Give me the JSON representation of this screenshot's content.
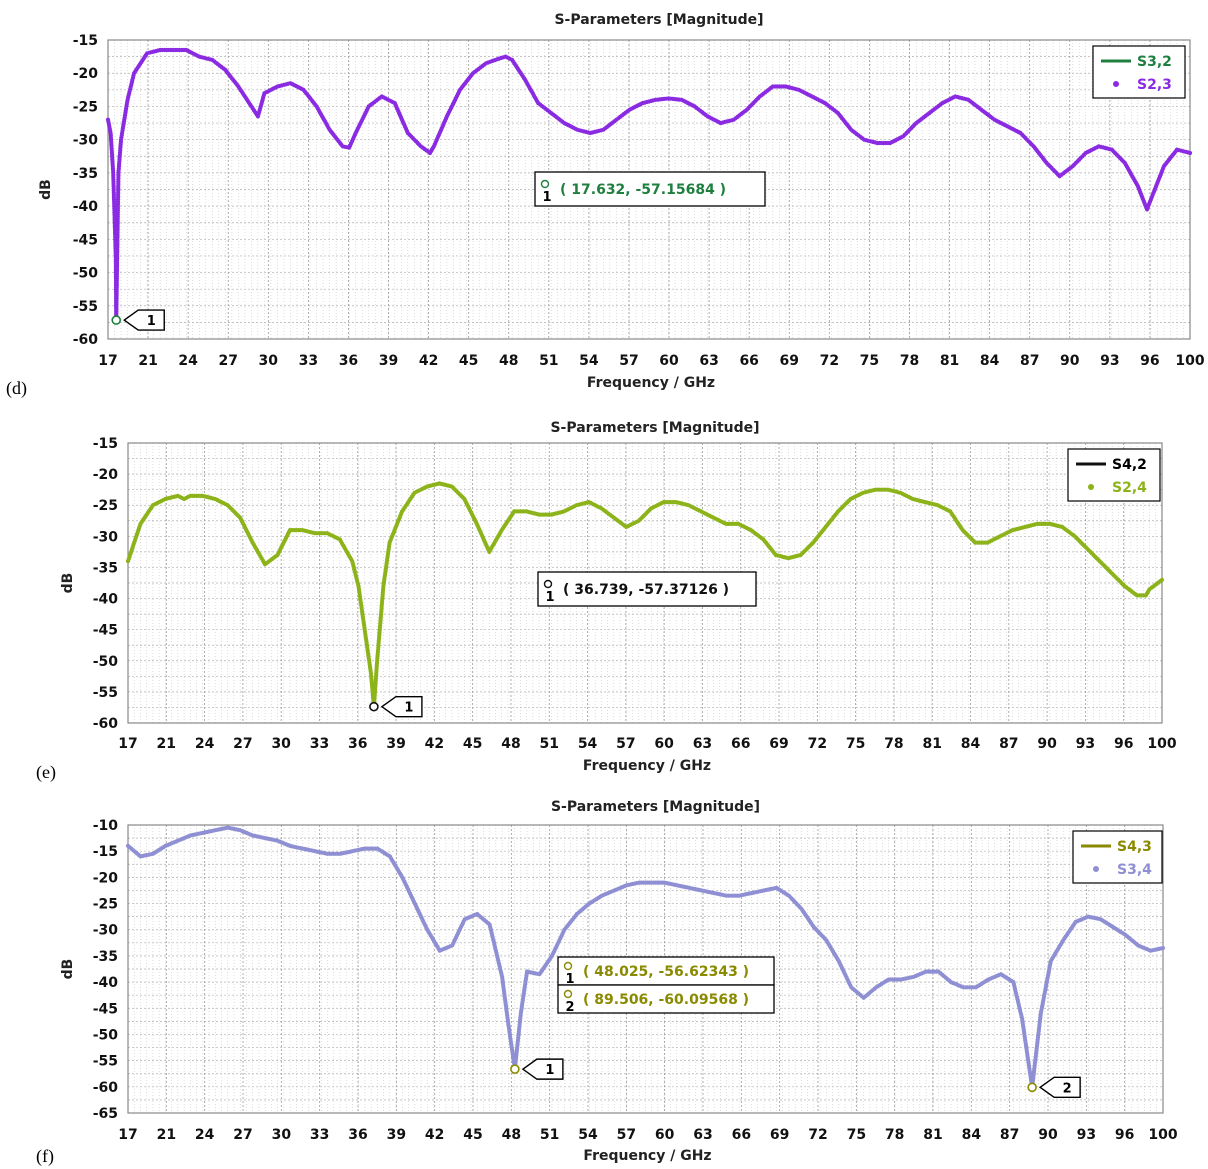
{
  "chart_data": [
    {
      "panel": "(d)",
      "type": "line",
      "title": "S-Parameters [Magnitude]",
      "xlabel": "Frequency / GHz",
      "ylabel": "dB",
      "xlim": [
        17,
        100
      ],
      "ylim": [
        -60,
        -15
      ],
      "xticks": [
        17,
        21,
        24,
        27,
        30,
        33,
        36,
        39,
        42,
        45,
        48,
        51,
        54,
        57,
        60,
        63,
        66,
        69,
        72,
        75,
        78,
        81,
        84,
        87,
        90,
        93,
        96,
        100
      ],
      "yticks": [
        -15,
        -20,
        -25,
        -30,
        -35,
        -40,
        -45,
        -50,
        -55,
        -60
      ],
      "grid": true,
      "legend_position": "top-right",
      "series": [
        {
          "name": "S3,2",
          "style": "line",
          "color": "#1f7f3f",
          "x": [
            17,
            17.2,
            17.4,
            17.6,
            17.632,
            17.8,
            18,
            18.5,
            19,
            20,
            21,
            22,
            23,
            24,
            25,
            26,
            27,
            28,
            28.5,
            29,
            30,
            31,
            32,
            33,
            34,
            35,
            35.5,
            36,
            37,
            38,
            39,
            40,
            41,
            41.7,
            42,
            43,
            44,
            45,
            46,
            47,
            47.5,
            48,
            49,
            50,
            51,
            52,
            53,
            54,
            55,
            56,
            57,
            58,
            59,
            60,
            61,
            62,
            63,
            64,
            65,
            66,
            67,
            68,
            69,
            70,
            71,
            72,
            73,
            74,
            75,
            76,
            77,
            78,
            79,
            80,
            81,
            82,
            83,
            84,
            85,
            86,
            87,
            88,
            89,
            90,
            91,
            92,
            93,
            94,
            95,
            96,
            96.7,
            97,
            98,
            99,
            100
          ],
          "y": [
            -27,
            -29,
            -35,
            -48,
            -57.15684,
            -35,
            -30,
            -24,
            -20,
            -17,
            -16.5,
            -16.5,
            -16.5,
            -17.5,
            -18,
            -19.5,
            -22,
            -25,
            -26.5,
            -23,
            -22,
            -21.5,
            -22.5,
            -25,
            -28.5,
            -31,
            -31.2,
            -29,
            -25,
            -23.5,
            -24.5,
            -29,
            -31,
            -32,
            -31,
            -26.5,
            -22.5,
            -20,
            -18.5,
            -17.8,
            -17.5,
            -18,
            -21,
            -24.5,
            -26,
            -27.5,
            -28.5,
            -29,
            -28.5,
            -27,
            -25.5,
            -24.5,
            -24,
            -23.8,
            -24,
            -25,
            -26.5,
            -27.5,
            -27,
            -25.5,
            -23.5,
            -22,
            -22,
            -22.5,
            -23.5,
            -24.5,
            -26,
            -28.5,
            -30,
            -30.5,
            -30.5,
            -29.5,
            -27.5,
            -26,
            -24.5,
            -23.5,
            -24,
            -25.5,
            -27,
            -28,
            -29,
            -31,
            -33.5,
            -35.5,
            -34,
            -32,
            -31,
            -31.5,
            -33.5,
            -37,
            -40.5,
            -39,
            -34,
            -31.5,
            -32
          ]
        },
        {
          "name": "S2,3",
          "style": "markers",
          "color": "#8a2be2",
          "same_as": "S3,2"
        }
      ],
      "markers": [
        {
          "id": "1",
          "x": 17.632,
          "y": -57.15684
        }
      ],
      "annotations": [
        {
          "marker": "1",
          "text": "( 17.632, -57.15684 )"
        }
      ]
    },
    {
      "panel": "(e)",
      "type": "line",
      "title": "S-Parameters [Magnitude]",
      "xlabel": "Frequency / GHz",
      "ylabel": "dB",
      "xlim": [
        17,
        100
      ],
      "ylim": [
        -60,
        -15
      ],
      "xticks": [
        17,
        21,
        24,
        27,
        30,
        33,
        36,
        39,
        42,
        45,
        48,
        51,
        54,
        57,
        60,
        63,
        66,
        69,
        72,
        75,
        78,
        81,
        84,
        87,
        90,
        93,
        96,
        100
      ],
      "yticks": [
        -15,
        -20,
        -25,
        -30,
        -35,
        -40,
        -45,
        -50,
        -55,
        -60
      ],
      "grid": true,
      "legend_position": "top-right",
      "series": [
        {
          "name": "S4,2",
          "style": "line",
          "color": "#111111",
          "x": [
            17,
            18,
            19,
            20,
            21,
            21.5,
            22,
            23,
            24,
            25,
            26,
            27,
            28,
            29,
            30,
            31,
            32,
            33,
            34,
            35,
            35.5,
            36,
            36.5,
            36.739,
            37,
            37.5,
            38,
            39,
            40,
            41,
            42,
            43,
            44,
            45,
            46,
            47,
            48,
            49,
            50,
            51,
            52,
            53,
            54,
            55,
            56,
            57,
            58,
            59,
            60,
            61,
            62,
            63,
            64,
            65,
            66,
            67,
            68,
            69,
            70,
            71,
            72,
            73,
            74,
            75,
            76,
            77,
            78,
            79,
            80,
            81,
            82,
            83,
            84,
            85,
            86,
            87,
            88,
            89,
            90,
            91,
            92,
            93,
            94,
            95,
            96,
            97,
            98,
            98.7,
            99,
            100
          ],
          "y": [
            -34,
            -28,
            -25,
            -24,
            -23.5,
            -24,
            -23.5,
            -23.5,
            -24,
            -25,
            -27,
            -31,
            -34.5,
            -33,
            -29,
            -29,
            -29.5,
            -29.5,
            -30.5,
            -34,
            -38,
            -45,
            -52,
            -57.37126,
            -50,
            -38,
            -31,
            -26,
            -23,
            -22,
            -21.5,
            -22,
            -24,
            -28,
            -32.5,
            -29,
            -26,
            -26,
            -26.5,
            -26.5,
            -26,
            -25,
            -24.5,
            -25.5,
            -27,
            -28.5,
            -27.5,
            -25.5,
            -24.5,
            -24.5,
            -25,
            -26,
            -27,
            -28,
            -28,
            -29,
            -30.5,
            -33,
            -33.5,
            -33,
            -31,
            -28.5,
            -26,
            -24,
            -23,
            -22.5,
            -22.5,
            -23,
            -24,
            -24.5,
            -25,
            -26,
            -29,
            -31,
            -31,
            -30,
            -29,
            -28.5,
            -28,
            -28,
            -28.5,
            -30,
            -32,
            -34,
            -36,
            -38,
            -39.5,
            -39.5,
            -38.5,
            -37
          ]
        },
        {
          "name": "S2,4",
          "style": "markers",
          "color": "#8db31a",
          "same_as": "S4,2"
        }
      ],
      "markers": [
        {
          "id": "1",
          "x": 36.739,
          "y": -57.37126
        }
      ],
      "annotations": [
        {
          "marker": "1",
          "text": "( 36.739, -57.37126 )"
        }
      ]
    },
    {
      "panel": "(f)",
      "type": "line",
      "title": "S-Parameters [Magnitude]",
      "xlabel": "Frequency / GHz",
      "ylabel": "dB",
      "xlim": [
        17,
        100
      ],
      "ylim": [
        -65,
        -10
      ],
      "xticks": [
        17,
        21,
        24,
        27,
        30,
        33,
        36,
        39,
        42,
        45,
        48,
        51,
        54,
        57,
        60,
        63,
        66,
        69,
        72,
        75,
        78,
        81,
        84,
        87,
        90,
        93,
        96,
        100
      ],
      "yticks": [
        -10,
        -15,
        -20,
        -25,
        -30,
        -35,
        -40,
        -45,
        -50,
        -55,
        -60,
        -65
      ],
      "grid": true,
      "legend_position": "top-right",
      "series": [
        {
          "name": "S4,3",
          "style": "line",
          "color": "#8a8a00",
          "x": [
            17,
            18,
            19,
            20,
            21,
            22,
            23,
            24,
            25,
            26,
            27,
            28,
            29,
            30,
            31,
            32,
            33,
            34,
            35,
            36,
            37,
            38,
            39,
            40,
            41,
            42,
            43,
            44,
            45,
            46,
            47,
            47.5,
            48.025,
            48.5,
            49,
            50,
            51,
            52,
            53,
            54,
            55,
            56,
            57,
            58,
            59,
            60,
            61,
            62,
            63,
            64,
            65,
            66,
            67,
            68,
            69,
            70,
            71,
            72,
            73,
            74,
            75,
            76,
            77,
            78,
            79,
            80,
            81,
            82,
            83,
            84,
            85,
            86,
            87,
            88,
            88.7,
            89.506,
            90.2,
            91,
            92,
            93,
            94,
            95,
            96,
            97,
            98,
            99,
            100
          ],
          "y": [
            -14,
            -16,
            -15.5,
            -14,
            -13,
            -12,
            -11.5,
            -11,
            -10.5,
            -11,
            -12,
            -12.5,
            -13,
            -14,
            -14.5,
            -15,
            -15.5,
            -15.5,
            -15,
            -14.5,
            -14.5,
            -16,
            -20,
            -25,
            -30,
            -34,
            -33,
            -28,
            -27,
            -29,
            -39,
            -48,
            -56.62343,
            -46,
            -38,
            -38.5,
            -35,
            -30,
            -27,
            -25,
            -23.5,
            -22.5,
            -21.5,
            -21,
            -21,
            -21,
            -21.5,
            -22,
            -22.5,
            -23,
            -23.5,
            -23.5,
            -23,
            -22.5,
            -22,
            -23.5,
            -26,
            -29.5,
            -32,
            -36,
            -41,
            -43,
            -41,
            -39.5,
            -39.5,
            -39,
            -38,
            -38,
            -40,
            -41,
            -41,
            -39.5,
            -38.5,
            -40,
            -47,
            -60.09568,
            -46,
            -36,
            -32,
            -28.5,
            -27.5,
            -28,
            -29.5,
            -31,
            -33,
            -34,
            -33.5
          ]
        },
        {
          "name": "S3,4",
          "style": "markers",
          "color": "#8f8fd4",
          "same_as": "S4,3"
        }
      ],
      "markers": [
        {
          "id": "1",
          "x": 48.025,
          "y": -56.62343
        },
        {
          "id": "2",
          "x": 89.506,
          "y": -60.09568
        }
      ],
      "annotations": [
        {
          "marker": "1",
          "text": "( 48.025, -56.62343 )"
        },
        {
          "marker": "2",
          "text": "( 89.506, -60.09568 )"
        }
      ]
    }
  ]
}
